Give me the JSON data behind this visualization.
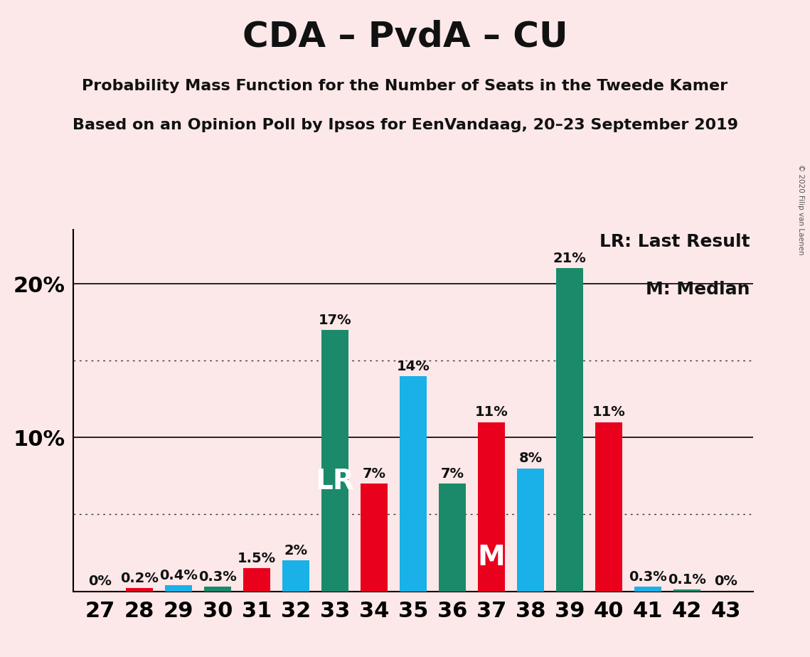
{
  "title": "CDA – PvdA – CU",
  "subtitle1": "Probability Mass Function for the Number of Seats in the Tweede Kamer",
  "subtitle2": "Based on an Opinion Poll by Ipsos for EenVandaag, 20–23 September 2019",
  "copyright": "© 2020 Filip van Laenen",
  "legend_lr": "LR: Last Result",
  "legend_m": "M: Median",
  "seats": [
    27,
    28,
    29,
    30,
    31,
    32,
    33,
    34,
    35,
    36,
    37,
    38,
    39,
    40,
    41,
    42,
    43
  ],
  "values": [
    0.0,
    0.2,
    0.4,
    0.3,
    1.5,
    2.0,
    17.0,
    7.0,
    14.0,
    7.0,
    11.0,
    8.0,
    21.0,
    11.0,
    0.3,
    0.1,
    0.0
  ],
  "labels": [
    "0%",
    "0.2%",
    "0.4%",
    "0.3%",
    "1.5%",
    "2%",
    "17%",
    "7%",
    "14%",
    "7%",
    "11%",
    "8%",
    "21%",
    "11%",
    "0.3%",
    "0.1%",
    "0%"
  ],
  "colors": [
    "#e8001c",
    "#e8001c",
    "#1ab0e8",
    "#1a8a6a",
    "#e8001c",
    "#1ab0e8",
    "#1a8a6a",
    "#e8001c",
    "#1ab0e8",
    "#1a8a6a",
    "#e8001c",
    "#1ab0e8",
    "#1a8a6a",
    "#e8001c",
    "#1ab0e8",
    "#1a8a6a",
    "#e8001c"
  ],
  "lr_seat": 33,
  "median_seat": 37,
  "background_color": "#fce8e8",
  "ylim_max": 23.5,
  "dotted_lines": [
    5.0,
    15.0
  ],
  "solid_lines": [
    10.0,
    20.0
  ],
  "title_fontsize": 36,
  "subtitle_fontsize": 16,
  "label_fontsize": 14,
  "tick_fontsize": 22,
  "ytick_fontsize": 22,
  "legend_fontsize": 18,
  "lr_label_fontsize": 28,
  "m_label_fontsize": 28,
  "bar_width": 0.7
}
